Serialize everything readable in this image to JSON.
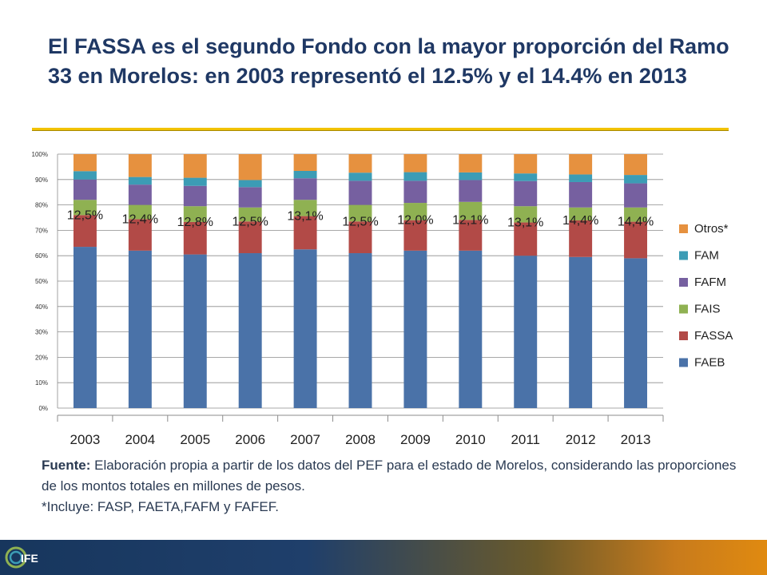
{
  "title": "El FASSA es el segundo Fondo con la mayor proporción del Ramo 33 en Morelos: en 2003 representó el 12.5% y el 14.4% en 2013",
  "source": {
    "label": "Fuente:",
    "text": " Elaboración propia a partir de los datos del PEF para el estado de Morelos, considerando las  proporciones de los montos totales en millones de pesos.",
    "note": "*Incluye: FASP, FAETA,FAFM y FAFEF."
  },
  "logo": {
    "text": "IFE",
    "icon": "logo-swirl-icon"
  },
  "colors": {
    "FAEB": "#4a72a8",
    "FASSA": "#b24a47",
    "FAIS": "#8fb152",
    "FAFM": "#7660a0",
    "FAM": "#3c9cb5",
    "Otros*": "#e6913f"
  },
  "chart_data": {
    "type": "bar",
    "stacked": true,
    "percent": true,
    "categories": [
      "2003",
      "2004",
      "2005",
      "2006",
      "2007",
      "2008",
      "2009",
      "2010",
      "2011",
      "2012",
      "2013"
    ],
    "ylim": [
      0,
      100
    ],
    "yticks": [
      "0%",
      "10%",
      "20%",
      "30%",
      "40%",
      "50%",
      "60%",
      "70%",
      "80%",
      "90%",
      "100%"
    ],
    "grid": true,
    "legend": "right",
    "series": [
      {
        "name": "FAEB",
        "values": [
          63.5,
          62.0,
          60.5,
          61.0,
          62.5,
          61.0,
          62.0,
          62.0,
          60.0,
          59.5,
          59.0
        ]
      },
      {
        "name": "FASSA",
        "values": [
          12.5,
          12.4,
          12.8,
          12.5,
          13.1,
          12.5,
          12.0,
          12.1,
          13.1,
          14.4,
          14.4
        ]
      },
      {
        "name": "FAIS",
        "values": [
          6.0,
          5.6,
          6.2,
          5.5,
          6.4,
          6.5,
          6.8,
          7.1,
          6.4,
          5.1,
          5.6
        ]
      },
      {
        "name": "FAFM",
        "values": [
          8.0,
          8.0,
          8.0,
          8.0,
          8.5,
          9.5,
          8.7,
          8.6,
          9.9,
          10.0,
          9.5
        ]
      },
      {
        "name": "FAM",
        "values": [
          3.3,
          3.0,
          3.2,
          2.8,
          2.9,
          3.2,
          3.4,
          3.0,
          3.0,
          3.0,
          3.3
        ]
      },
      {
        "name": "Otros*",
        "values": [
          6.7,
          9.0,
          9.3,
          10.2,
          6.6,
          7.3,
          7.1,
          7.2,
          7.6,
          8.0,
          8.2
        ]
      }
    ],
    "data_labels": [
      "12,5%",
      "12,4%",
      "12,8%",
      "12,5%",
      "13,1%",
      "12,5%",
      "12,0%",
      "12,1%",
      "13,1%",
      "14,4%",
      "14,4%"
    ],
    "legend_order": [
      "Otros*",
      "FAM",
      "FAFM",
      "FAIS",
      "FASSA",
      "FAEB"
    ]
  }
}
